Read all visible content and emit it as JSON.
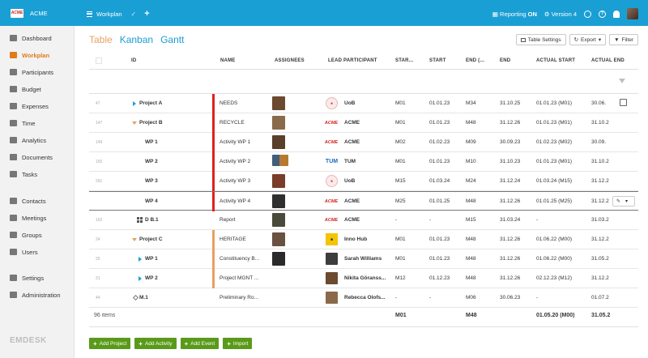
{
  "app": {
    "logo_text": "ACME",
    "name": "ACME"
  },
  "crumb": {
    "label": "Workplan",
    "check": "✓",
    "plus": "+"
  },
  "top_right": {
    "reporting_label": "Reporting",
    "reporting_state": "ON",
    "version": "Version 4",
    "help": "?"
  },
  "sidebar": {
    "items": [
      {
        "label": "Dashboard",
        "icon": "dashboard-icon",
        "active": false
      },
      {
        "label": "Workplan",
        "icon": "workplan-icon",
        "active": true
      },
      {
        "label": "Participants",
        "icon": "participants-icon",
        "active": false
      },
      {
        "label": "Budget",
        "icon": "budget-icon",
        "active": false
      },
      {
        "label": "Expenses",
        "icon": "expenses-icon",
        "active": false
      },
      {
        "label": "Time",
        "icon": "time-icon",
        "active": false
      },
      {
        "label": "Analytics",
        "icon": "analytics-icon",
        "active": false
      },
      {
        "label": "Documents",
        "icon": "documents-icon",
        "active": false
      },
      {
        "label": "Tasks",
        "icon": "tasks-icon",
        "active": false
      },
      {
        "label": "Contacts",
        "icon": "contacts-icon",
        "active": false
      },
      {
        "label": "Meetings",
        "icon": "meetings-icon",
        "active": false
      },
      {
        "label": "Groups",
        "icon": "groups-icon",
        "active": false
      },
      {
        "label": "Users",
        "icon": "users-icon",
        "active": false
      },
      {
        "label": "Settings",
        "icon": "settings-icon",
        "active": false
      },
      {
        "label": "Administration",
        "icon": "administration-icon",
        "active": false
      }
    ],
    "brand": "EMDESK"
  },
  "views": {
    "table": "Table",
    "kanban": "Kanban",
    "gantt": "Gantt"
  },
  "toolbar": {
    "table_settings": "Table Settings",
    "export": "Export",
    "filter": "Filter"
  },
  "columns": {
    "id": "ID",
    "name": "NAME",
    "assignees": "ASSIGNEES",
    "lead": "LEAD PARTICIPANT",
    "start_m": "STAR...",
    "start": "START",
    "end_m": "END (...",
    "end": "END",
    "actual_start": "ACTUAL START",
    "actual_end": "ACTUAL END"
  },
  "rows": [
    {
      "num": "47",
      "id": "Project A",
      "name": "NEEDS",
      "lead": "UoB",
      "lead_type": "uob",
      "start_m": "M01",
      "start": "01.01.23",
      "end_m": "M34",
      "end": "31.10.25",
      "actual_start": "01.01.23 (M01)",
      "actual_end": "30.06.",
      "bar": "#e02020",
      "expand": "right",
      "indent": 0,
      "icon": "",
      "assignees": [
        1
      ],
      "extra": "lock"
    },
    {
      "num": "147",
      "id": "Project B",
      "name": "RECYCLE",
      "lead": "ACME",
      "lead_type": "acme",
      "start_m": "M01",
      "start": "01.01.23",
      "end_m": "M48",
      "end": "31.12.26",
      "actual_start": "01.01.23 (M01)",
      "actual_end": "31.10.2",
      "bar": "#e02020",
      "expand": "down",
      "indent": 0,
      "icon": "",
      "assignees": [
        2
      ],
      "extra": ""
    },
    {
      "num": "149",
      "id": "WP 1",
      "name": "Activity WP 1",
      "lead": "ACME",
      "lead_type": "acme",
      "start_m": "M02",
      "start": "01.02.23",
      "end_m": "M09",
      "end": "30.09.23",
      "actual_start": "01.02.23 (M02)",
      "actual_end": "30.09.",
      "bar": "#e02020",
      "expand": "",
      "indent": 1,
      "icon": "",
      "assignees": [
        3
      ],
      "extra": ""
    },
    {
      "num": "150",
      "id": "WP 2",
      "name": "Activity WP 2",
      "lead": "TUM",
      "lead_type": "tum",
      "start_m": "M01",
      "start": "01.01.23",
      "end_m": "M10",
      "end": "31.10.23",
      "actual_start": "01.01.23 (M01)",
      "actual_end": "31.10.2",
      "bar": "#e02020",
      "expand": "",
      "indent": 1,
      "icon": "",
      "assignees": [
        4,
        5
      ],
      "extra": ""
    },
    {
      "num": "291",
      "id": "WP 3",
      "name": "Activity WP 3",
      "lead": "UoB",
      "lead_type": "uob",
      "start_m": "M15",
      "start": "01.03.24",
      "end_m": "M24",
      "end": "31.12.24",
      "actual_start": "01.03.24 (M15)",
      "actual_end": "31.12.2",
      "bar": "#e02020",
      "expand": "",
      "indent": 1,
      "icon": "",
      "assignees": [
        6
      ],
      "extra": ""
    },
    {
      "num": "",
      "id": "WP 4",
      "name": "Activity WP 4",
      "lead": "ACME",
      "lead_type": "acme",
      "start_m": "M25",
      "start": "01.01.25",
      "end_m": "M48",
      "end": "31.12.26",
      "actual_start": "01.01.25 (M25)",
      "actual_end": "31.12.2",
      "bar": "#e02020",
      "expand": "",
      "indent": 1,
      "icon": "",
      "assignees": [
        7
      ],
      "extra": "edit",
      "selected": true
    },
    {
      "num": "162",
      "id": "D B.1",
      "name": "Report",
      "lead": "ACME",
      "lead_type": "acme",
      "start_m": "-",
      "start": "-",
      "end_m": "M15",
      "end": "31.03.24",
      "actual_start": "-",
      "actual_end": "31.03.2",
      "bar": "",
      "expand": "",
      "indent": 1,
      "icon": "grid",
      "assignees": [
        8
      ],
      "extra": ""
    },
    {
      "num": "24",
      "id": "Project C",
      "name": "HERITAGE",
      "lead": "Inno Hub",
      "lead_type": "inno",
      "start_m": "M01",
      "start": "01.01.23",
      "end_m": "M48",
      "end": "31.12.26",
      "actual_start": "01.06.22 (M00)",
      "actual_end": "31.12.2",
      "bar": "#e8a060",
      "expand": "down",
      "indent": 0,
      "icon": "",
      "assignees": [
        9
      ],
      "extra": ""
    },
    {
      "num": "25",
      "id": "WP 1",
      "name": "Constituency B...",
      "lead": "Sarah Williams",
      "lead_type": "photo",
      "start_m": "M01",
      "start": "01.01.23",
      "end_m": "M48",
      "end": "31.12.26",
      "actual_start": "01.06.22 (M00)",
      "actual_end": "31.05.2",
      "bar": "#e8a060",
      "expand": "right",
      "indent": 1,
      "icon": "",
      "assignees": [
        10
      ],
      "extra": ""
    },
    {
      "num": "31",
      "id": "WP 2",
      "name": "Project MGNT ...",
      "lead": "Nikita Göranss...",
      "lead_type": "photo",
      "start_m": "M12",
      "start": "01.12.23",
      "end_m": "M48",
      "end": "31.12.26",
      "actual_start": "02.12.23 (M12)",
      "actual_end": "31.12.2",
      "bar": "#e8a060",
      "expand": "right",
      "indent": 1,
      "icon": "",
      "assignees": [],
      "extra": ""
    },
    {
      "num": "44",
      "id": "M.1",
      "name": "Preliminary Ro...",
      "lead": "Rebecca Olofs...",
      "lead_type": "photo",
      "start_m": "-",
      "start": "-",
      "end_m": "M06",
      "end": "30.06.23",
      "actual_start": "-",
      "actual_end": "01.07.2",
      "bar": "",
      "expand": "",
      "indent": 0,
      "icon": "diamond",
      "assignees": [],
      "extra": ""
    }
  ],
  "footer": {
    "items": "96 items",
    "start_m": "M01",
    "end_m": "M48",
    "actual_start": "01.05.20 (M00)",
    "actual_end": "31.05.2"
  },
  "add_buttons": [
    "Add Project",
    "Add Activity",
    "Add Event",
    "Import"
  ],
  "colors": {
    "topbar": "#1a9fd4",
    "accent_orange": "#e07b1a",
    "add_green": "#5a9a1a",
    "bar_red": "#e02020",
    "bar_orange": "#e8a060"
  }
}
